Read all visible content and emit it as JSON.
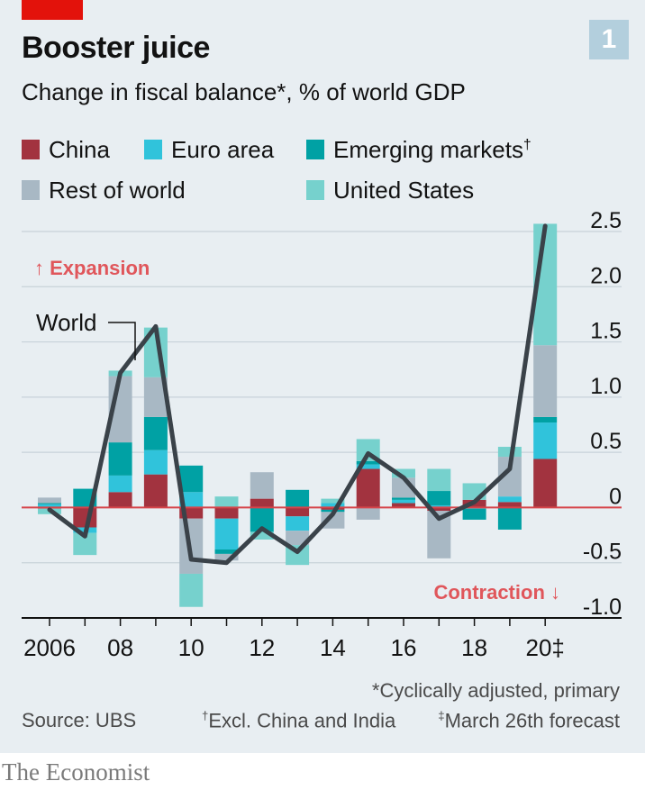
{
  "header": {
    "title": "Booster juice",
    "subtitle": "Change in fiscal balance*, % of world GDP",
    "chart_number": "1"
  },
  "legend": [
    {
      "label": "China",
      "sup": "",
      "color": "#a2333f"
    },
    {
      "label": "Euro area",
      "sup": "",
      "color": "#30c3db"
    },
    {
      "label": "Emerging markets",
      "sup": "†",
      "color": "#00a1a4"
    },
    {
      "label": "Rest of world",
      "sup": "",
      "color": "#a8b8c4"
    },
    {
      "label": "United States",
      "sup": "",
      "color": "#76d1cd"
    }
  ],
  "annotations": {
    "expansion": "↑ Expansion",
    "contraction": "Contraction ↓",
    "world_label": "World"
  },
  "footer": {
    "note_cyclical": "*Cyclically adjusted, primary",
    "source": "Source: UBS",
    "note_excl": "Excl. China and India",
    "note_excl_mark": "†",
    "note_forecast": "March 26th forecast",
    "note_forecast_mark": "‡",
    "brand": "The Economist"
  },
  "chart_data": {
    "type": "bar",
    "stacked": true,
    "categories": [
      "2006",
      "2007",
      "2008",
      "2009",
      "2010",
      "2011",
      "2012",
      "2013",
      "2014",
      "2015",
      "2016",
      "2017",
      "2018",
      "2019",
      "2020"
    ],
    "x_tick_labels": [
      {
        "year": "2006",
        "label": "2006"
      },
      {
        "year": "2008",
        "label": "08"
      },
      {
        "year": "2010",
        "label": "10"
      },
      {
        "year": "2012",
        "label": "12"
      },
      {
        "year": "2014",
        "label": "14"
      },
      {
        "year": "2016",
        "label": "16"
      },
      {
        "year": "2018",
        "label": "18"
      },
      {
        "year": "2020",
        "label": "20‡"
      }
    ],
    "y_ticks": [
      {
        "value": 2.5,
        "label": "2.5"
      },
      {
        "value": 2.0,
        "label": "2.0"
      },
      {
        "value": 1.5,
        "label": "1.5"
      },
      {
        "value": 1.0,
        "label": "1.0"
      },
      {
        "value": 0.5,
        "label": "0.5"
      },
      {
        "value": 0,
        "label": "0"
      },
      {
        "value": -0.5,
        "label": "-0.5"
      },
      {
        "value": -1.0,
        "label": "-1.0"
      }
    ],
    "ylim": [
      -1.0,
      2.5
    ],
    "series": [
      {
        "name": "China",
        "color": "#a2333f",
        "values": [
          -0.01,
          -0.18,
          0.14,
          0.3,
          -0.1,
          -0.1,
          0.08,
          -0.08,
          -0.02,
          0.35,
          0.04,
          -0.03,
          0.07,
          0.05,
          0.44
        ]
      },
      {
        "name": "Euro area",
        "color": "#30c3db",
        "values": [
          0.03,
          -0.05,
          0.15,
          0.22,
          0.14,
          -0.28,
          0.0,
          -0.13,
          0.04,
          0.04,
          0.03,
          0.02,
          -0.01,
          0.05,
          0.33
        ]
      },
      {
        "name": "Emerging markets",
        "color": "#00a1a4",
        "values": [
          0.01,
          0.17,
          0.3,
          0.3,
          0.24,
          -0.04,
          -0.22,
          0.16,
          -0.02,
          0.03,
          0.02,
          0.13,
          -0.1,
          -0.2,
          0.05
        ]
      },
      {
        "name": "Rest of world",
        "color": "#a8b8c4",
        "values": [
          0.05,
          0.0,
          0.6,
          0.36,
          -0.5,
          -0.06,
          0.24,
          -0.13,
          -0.15,
          -0.11,
          0.18,
          -0.43,
          0.0,
          0.36,
          0.65
        ]
      },
      {
        "name": "United States",
        "color": "#76d1cd",
        "values": [
          -0.05,
          -0.2,
          0.05,
          0.45,
          -0.3,
          0.1,
          -0.07,
          -0.18,
          0.04,
          0.2,
          0.08,
          0.2,
          0.15,
          0.09,
          1.1
        ]
      }
    ],
    "line": {
      "name": "World",
      "color": "#3a4249",
      "values": [
        -0.02,
        -0.26,
        1.22,
        1.64,
        -0.47,
        -0.5,
        -0.19,
        -0.4,
        -0.06,
        0.49,
        0.27,
        -0.1,
        0.05,
        0.35,
        2.55
      ]
    }
  }
}
